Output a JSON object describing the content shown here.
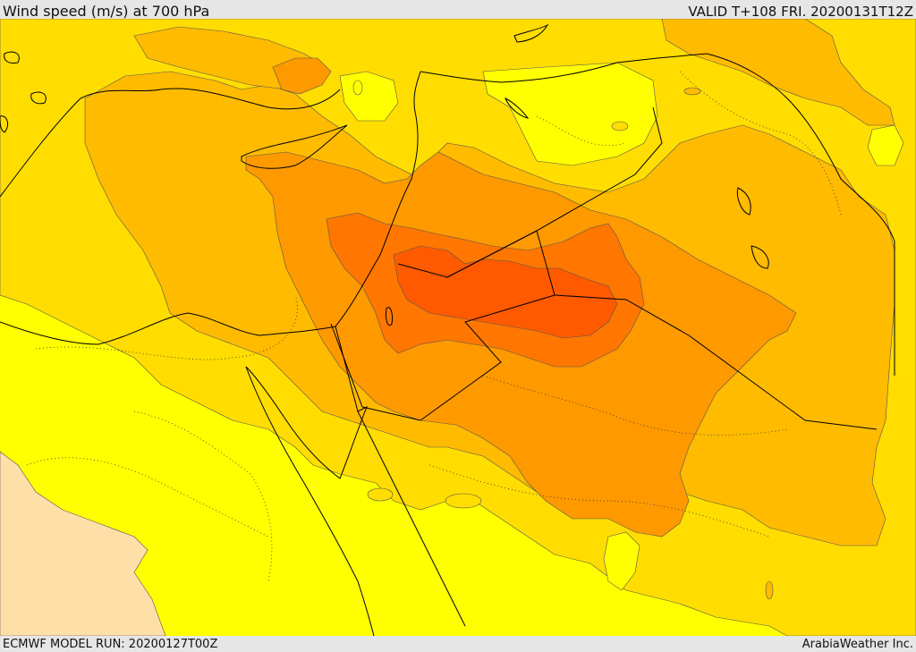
{
  "header": {
    "title": "Wind speed (m/s) at 700 hPa",
    "valid": "VALID T+108 FRI. 20200131T12Z"
  },
  "footer": {
    "model_run": "ECMWF MODEL RUN: 20200127T00Z",
    "credit": "ArabiaWeather Inc."
  },
  "colors": {
    "bg_peach": "#ffdfa8",
    "lvl_yellow": "#ffff00",
    "lvl_gold": "#ffdd00",
    "lvl_amber": "#ffbb00",
    "lvl_orange": "#ff9900",
    "lvl_dark_orange": "#ff7700",
    "lvl_red_orange": "#ff5a00",
    "border_line": "#000000",
    "contour_line": "#555555"
  }
}
